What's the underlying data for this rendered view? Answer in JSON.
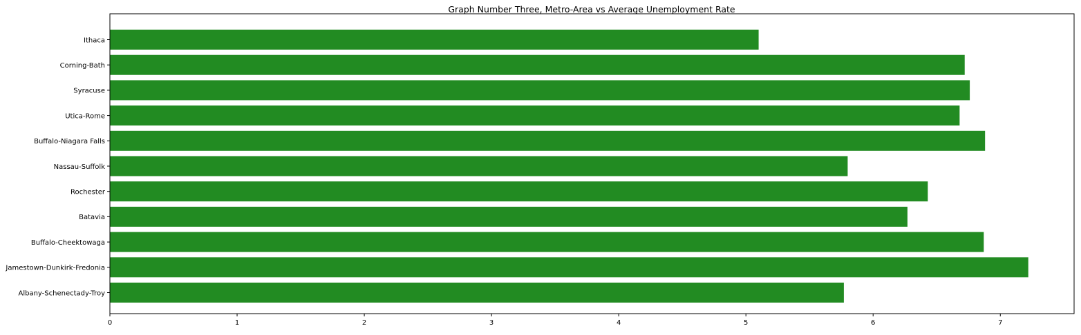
{
  "chart_data": {
    "type": "bar",
    "orientation": "horizontal",
    "title": "Graph Number Three, Metro-Area vs Average Unemployment Rate",
    "xlabel": "",
    "ylabel": "",
    "xlim": [
      0,
      7.58
    ],
    "grid": false,
    "bar_color": "#228B22",
    "x_ticks": [
      0,
      1,
      2,
      3,
      4,
      5,
      6,
      7
    ],
    "categories": [
      "Ithaca",
      "Corning-Bath",
      "Syracuse",
      "Utica-Rome",
      "Buffalo-Niagara Falls",
      "Nassau-Suffolk",
      "Rochester",
      "Batavia",
      "Buffalo-Cheektowaga",
      "Jamestown-Dunkirk-Fredonia",
      "Albany-Schenectady-Troy"
    ],
    "values": [
      5.1,
      6.72,
      6.76,
      6.68,
      6.88,
      5.8,
      6.43,
      6.27,
      6.87,
      7.22,
      5.77
    ]
  }
}
